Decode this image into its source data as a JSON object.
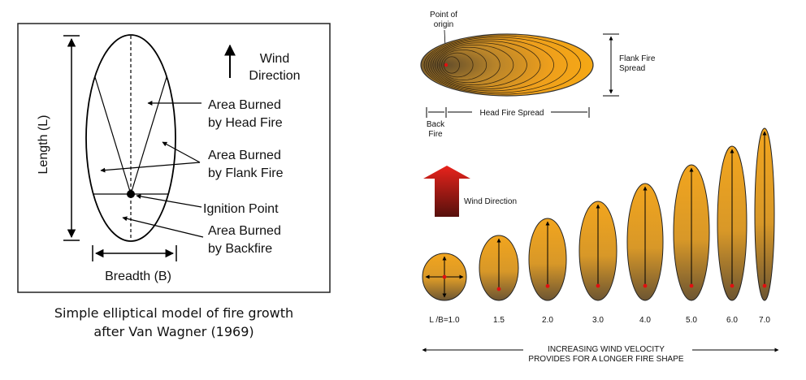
{
  "left_figure": {
    "wind_label_1": "Wind",
    "wind_label_2": "Direction",
    "length_label": "Length (L)",
    "breadth_label": "Breadth (B)",
    "head_fire_1": "Area Burned",
    "head_fire_2": "by Head Fire",
    "flank_fire_1": "Area Burned",
    "flank_fire_2": "by Flank Fire",
    "ignition_point": "Ignition Point",
    "backfire_1": "Area Burned",
    "backfire_2": "by Backfire"
  },
  "caption": {
    "line1": "Simple elliptical model of fire growth",
    "line2": "after Van Wagner (1969)"
  },
  "right_top": {
    "point_of_origin_1": "Point of",
    "point_of_origin_2": "origin",
    "flank_fire_spread_1": "Flank Fire",
    "flank_fire_spread_2": "Spread",
    "back_fire_1": "Back",
    "back_fire_2": "Fire",
    "head_fire_spread": "Head Fire Spread"
  },
  "right_bottom": {
    "wind_direction": "Wind Direction",
    "ratio_labels": [
      "L /B=1.0",
      "1.5",
      "2.0",
      "3.0",
      "4.0",
      "5.0",
      "6.0",
      "7.0"
    ],
    "velocity_line1": "INCREASING WIND VELOCITY",
    "velocity_line2": "PROVIDES FOR A LONGER FIRE SHAPE"
  },
  "colors": {
    "fire_orange": "#f0a020",
    "fire_dark": "#6a5028",
    "wind_arrow_top": "#e02020",
    "wind_arrow_bottom": "#5a0c0c",
    "ignition_red": "#e01010"
  }
}
